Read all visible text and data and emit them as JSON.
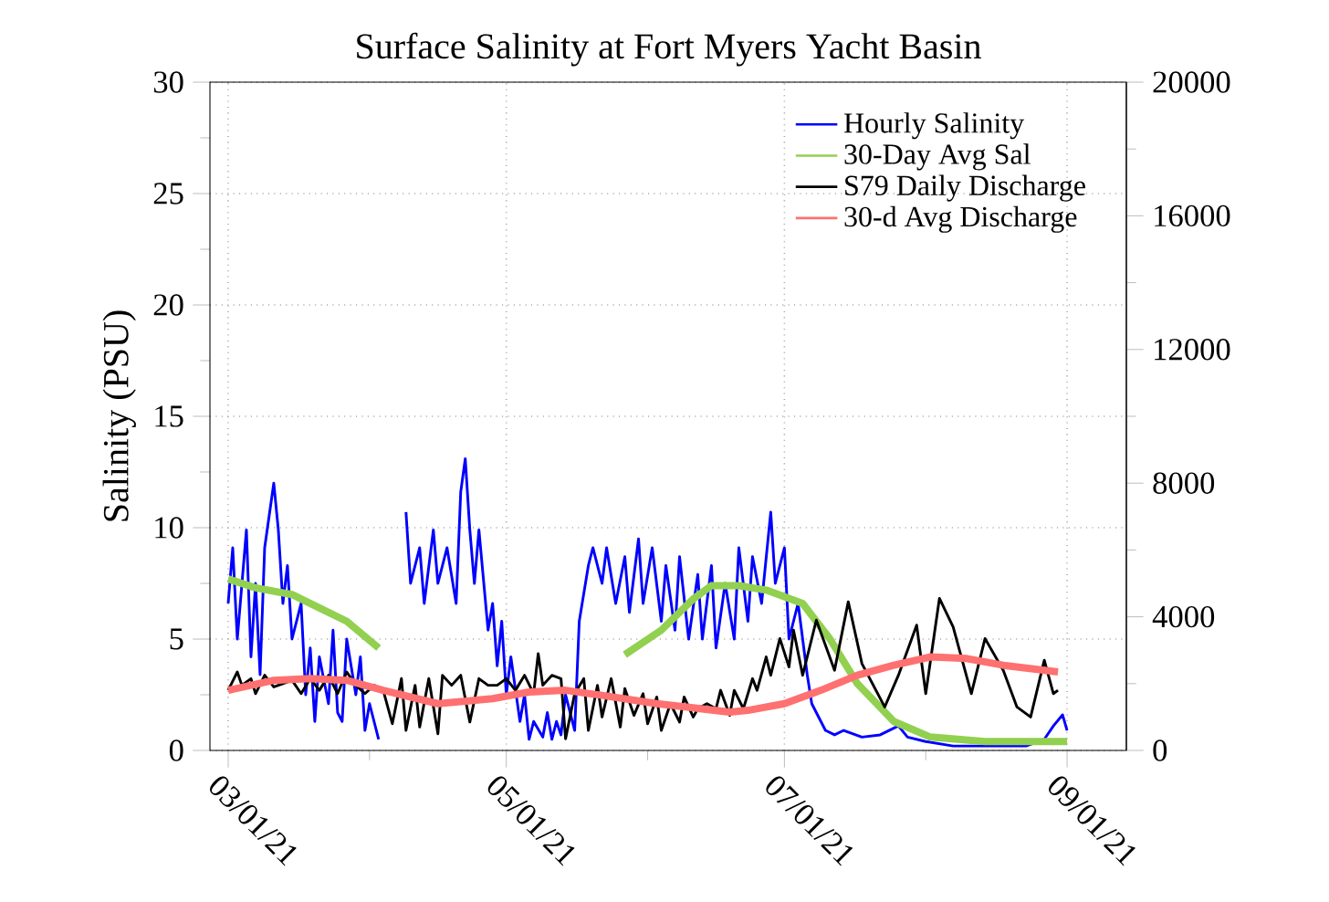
{
  "chart_data": {
    "type": "line",
    "title": "Surface Salinity at Fort Myers Yacht Basin",
    "ylabel": "Salinity (PSU)",
    "xlim": [
      "2021-02-25",
      "2021-09-14"
    ],
    "xticks": [
      {
        "value": "2021-03-01",
        "label": "03/01/21"
      },
      {
        "value": "2021-04-01",
        "label": null
      },
      {
        "value": "2021-05-01",
        "label": "05/01/21"
      },
      {
        "value": "2021-06-01",
        "label": null
      },
      {
        "value": "2021-07-01",
        "label": "07/01/21"
      },
      {
        "value": "2021-08-01",
        "label": null
      },
      {
        "value": "2021-09-01",
        "label": "09/01/21"
      }
    ],
    "ylim": [
      0,
      30
    ],
    "yticks": [
      0,
      {
        "value": 2.5,
        "label": null
      },
      5,
      {
        "value": 7.5,
        "label": null
      },
      10,
      {
        "value": 12.5,
        "label": null
      },
      15,
      {
        "value": 17.5,
        "label": null
      },
      20,
      {
        "value": 22.5,
        "label": null
      },
      25,
      {
        "value": 27.5,
        "label": null
      },
      30
    ],
    "y2lim": [
      0,
      20000
    ],
    "y2ticks": [
      0,
      {
        "value": 2000,
        "label": null
      },
      4000,
      {
        "value": 6000,
        "label": null
      },
      8000,
      {
        "value": 10000,
        "label": null
      },
      12000,
      {
        "value": 14000,
        "label": null
      },
      16000,
      {
        "value": 18000,
        "label": null
      },
      20000
    ],
    "grid": true,
    "legend": "top right",
    "series": [
      {
        "name": "Hourly Salinity",
        "color": "#0000ff",
        "x": [
          "2021-03-01",
          "2021-03-02",
          "2021-03-03",
          "2021-03-05",
          "2021-03-06",
          "2021-03-07",
          "2021-03-08",
          "2021-03-09",
          "2021-03-11",
          "2021-03-12",
          "2021-03-13",
          "2021-03-14",
          "2021-03-15",
          "2021-03-17",
          "2021-03-18",
          "2021-03-19",
          "2021-03-20",
          "2021-03-21",
          "2021-03-23",
          "2021-03-24",
          "2021-03-25",
          "2021-03-26",
          "2021-03-27",
          "2021-03-29",
          "2021-03-30",
          "2021-03-31",
          "2021-04-01",
          "2021-04-03",
          "2021-04-06",
          "2021-04-09",
          "2021-04-10",
          "2021-04-12",
          "2021-04-13",
          "2021-04-15",
          "2021-04-16",
          "2021-04-18",
          "2021-04-20",
          "2021-04-21",
          "2021-04-22",
          "2021-04-23",
          "2021-04-24",
          "2021-04-25",
          "2021-04-27",
          "2021-04-28",
          "2021-04-29",
          "2021-04-30",
          "2021-05-01",
          "2021-05-02",
          "2021-05-04",
          "2021-05-05",
          "2021-05-06",
          "2021-05-07",
          "2021-05-09",
          "2021-05-10",
          "2021-05-11",
          "2021-05-12",
          "2021-05-13",
          "2021-05-14",
          "2021-05-16",
          "2021-05-17",
          "2021-05-19",
          "2021-05-20",
          "2021-05-22",
          "2021-05-23",
          "2021-05-25",
          "2021-05-27",
          "2021-05-28",
          "2021-05-30",
          "2021-05-31",
          "2021-06-02",
          "2021-06-04",
          "2021-06-05",
          "2021-06-07",
          "2021-06-08",
          "2021-06-10",
          "2021-06-12",
          "2021-06-13",
          "2021-06-15",
          "2021-06-16",
          "2021-06-18",
          "2021-06-20",
          "2021-06-21",
          "2021-06-23",
          "2021-06-24",
          "2021-06-26",
          "2021-06-28",
          "2021-06-29",
          "2021-07-01",
          "2021-07-02",
          "2021-07-04",
          "2021-07-06",
          "2021-07-07",
          "2021-07-09",
          "2021-07-10",
          "2021-07-12",
          "2021-07-14",
          "2021-07-18",
          "2021-07-22",
          "2021-07-26",
          "2021-07-28",
          "2021-08-01",
          "2021-08-07",
          "2021-08-15",
          "2021-08-23",
          "2021-08-27",
          "2021-08-29",
          "2021-08-31",
          "2021-09-01"
        ],
        "values": [
          6.6,
          9.1,
          5.0,
          9.9,
          4.2,
          7.5,
          3.4,
          9.1,
          12.0,
          9.9,
          6.6,
          8.3,
          5.0,
          6.6,
          2.5,
          4.6,
          1.3,
          4.2,
          2.1,
          5.4,
          1.7,
          1.3,
          5.0,
          2.5,
          4.2,
          0.9,
          2.1,
          0.5,
          null,
          10.7,
          7.5,
          9.1,
          6.6,
          9.9,
          7.5,
          9.1,
          6.6,
          11.6,
          13.1,
          9.9,
          7.5,
          9.9,
          5.4,
          6.6,
          3.8,
          5.8,
          2.5,
          4.2,
          1.3,
          2.5,
          0.5,
          1.3,
          0.6,
          1.7,
          0.5,
          1.3,
          0.7,
          2.5,
          0.9,
          5.8,
          8.3,
          9.1,
          7.5,
          9.1,
          6.6,
          8.7,
          6.2,
          9.5,
          6.6,
          9.1,
          5.8,
          8.3,
          5.4,
          8.7,
          5.0,
          7.9,
          5.0,
          8.3,
          4.6,
          7.5,
          5.0,
          9.1,
          5.8,
          8.7,
          6.6,
          10.7,
          7.5,
          9.1,
          5.0,
          6.6,
          3.4,
          2.1,
          1.3,
          0.9,
          0.7,
          0.9,
          0.6,
          0.7,
          1.1,
          0.6,
          0.4,
          0.2,
          0.2,
          0.2,
          0.5,
          1.1,
          1.6,
          0.9
        ]
      },
      {
        "name": "30-Day Avg Sal",
        "color": "#92d050",
        "x": [
          "2021-03-01",
          "2021-03-07",
          "2021-03-15",
          "2021-03-21",
          "2021-03-27",
          "2021-04-03",
          "2021-04-06",
          "2021-05-27",
          "2021-06-04",
          "2021-06-11",
          "2021-06-15",
          "2021-06-21",
          "2021-06-27",
          "2021-07-05",
          "2021-07-11",
          "2021-07-17",
          "2021-07-25",
          "2021-08-02",
          "2021-08-14",
          "2021-09-01"
        ],
        "values": [
          7.7,
          7.3,
          7.0,
          6.4,
          5.8,
          4.6,
          null,
          4.3,
          5.4,
          6.8,
          7.4,
          7.4,
          7.2,
          6.6,
          5.0,
          3.0,
          1.3,
          0.6,
          0.4,
          0.4
        ]
      },
      {
        "name": "S79 Daily Discharge",
        "color": "#000000",
        "axis": "y2",
        "x": [
          "2021-03-01",
          "2021-03-03",
          "2021-03-04",
          "2021-03-06",
          "2021-03-07",
          "2021-03-09",
          "2021-03-11",
          "2021-03-13",
          "2021-03-15",
          "2021-03-17",
          "2021-03-19",
          "2021-03-21",
          "2021-03-23",
          "2021-03-25",
          "2021-03-27",
          "2021-03-29",
          "2021-03-31",
          "2021-04-02",
          "2021-04-04",
          "2021-04-06",
          "2021-04-08",
          "2021-04-09",
          "2021-04-11",
          "2021-04-12",
          "2021-04-14",
          "2021-04-16",
          "2021-04-17",
          "2021-04-19",
          "2021-04-21",
          "2021-04-23",
          "2021-04-25",
          "2021-04-27",
          "2021-04-29",
          "2021-05-01",
          "2021-05-03",
          "2021-05-05",
          "2021-05-07",
          "2021-05-08",
          "2021-05-09",
          "2021-05-11",
          "2021-05-13",
          "2021-05-14",
          "2021-05-16",
          "2021-05-18",
          "2021-05-19",
          "2021-05-21",
          "2021-05-22",
          "2021-05-24",
          "2021-05-26",
          "2021-05-27",
          "2021-05-29",
          "2021-05-31",
          "2021-06-01",
          "2021-06-03",
          "2021-06-04",
          "2021-06-06",
          "2021-06-08",
          "2021-06-09",
          "2021-06-11",
          "2021-06-12",
          "2021-06-14",
          "2021-06-16",
          "2021-06-17",
          "2021-06-19",
          "2021-06-20",
          "2021-06-22",
          "2021-06-24",
          "2021-06-25",
          "2021-06-27",
          "2021-06-28",
          "2021-06-30",
          "2021-07-02",
          "2021-07-03",
          "2021-07-05",
          "2021-07-08",
          "2021-07-12",
          "2021-07-15",
          "2021-07-18",
          "2021-07-23",
          "2021-07-26",
          "2021-07-30",
          "2021-08-01",
          "2021-08-04",
          "2021-08-07",
          "2021-08-11",
          "2021-08-14",
          "2021-08-18",
          "2021-08-21",
          "2021-08-24",
          "2021-08-27",
          "2021-08-29",
          "2021-08-30"
        ],
        "values": [
          1800,
          2350,
          1950,
          2150,
          1700,
          2250,
          1900,
          2000,
          2100,
          1700,
          2150,
          1800,
          2250,
          1700,
          2350,
          1950,
          1700,
          1950,
          1800,
          800,
          2150,
          600,
          1950,
          700,
          2150,
          500,
          2250,
          1950,
          2250,
          850,
          2150,
          1950,
          1950,
          2150,
          1800,
          2250,
          1700,
          2900,
          1950,
          2250,
          2150,
          350,
          1700,
          2150,
          600,
          1950,
          1000,
          2150,
          700,
          1850,
          1050,
          1700,
          800,
          1600,
          600,
          1400,
          850,
          1600,
          1000,
          1250,
          1400,
          1250,
          1800,
          1050,
          1800,
          1250,
          2150,
          1800,
          2800,
          2250,
          3350,
          2500,
          3600,
          2250,
          3900,
          2400,
          4450,
          2600,
          1300,
          2250,
          3750,
          1700,
          4550,
          3700,
          1700,
          3350,
          2400,
          1300,
          1000,
          2700,
          1700,
          1800
        ]
      },
      {
        "name": "30-d Avg Discharge",
        "color": "#ff7070",
        "axis": "y2",
        "x": [
          "2021-03-01",
          "2021-03-11",
          "2021-03-19",
          "2021-03-27",
          "2021-04-04",
          "2021-04-16",
          "2021-04-28",
          "2021-05-06",
          "2021-05-14",
          "2021-05-22",
          "2021-06-03",
          "2021-06-19",
          "2021-06-23",
          "2021-07-01",
          "2021-07-09",
          "2021-07-17",
          "2021-07-25",
          "2021-08-02",
          "2021-08-10",
          "2021-08-18",
          "2021-08-24",
          "2021-08-30"
        ],
        "values": [
          1800,
          2100,
          2150,
          2100,
          1800,
          1400,
          1550,
          1750,
          1800,
          1650,
          1400,
          1150,
          1200,
          1400,
          1800,
          2250,
          2550,
          2800,
          2750,
          2550,
          2450,
          2350
        ]
      }
    ]
  }
}
